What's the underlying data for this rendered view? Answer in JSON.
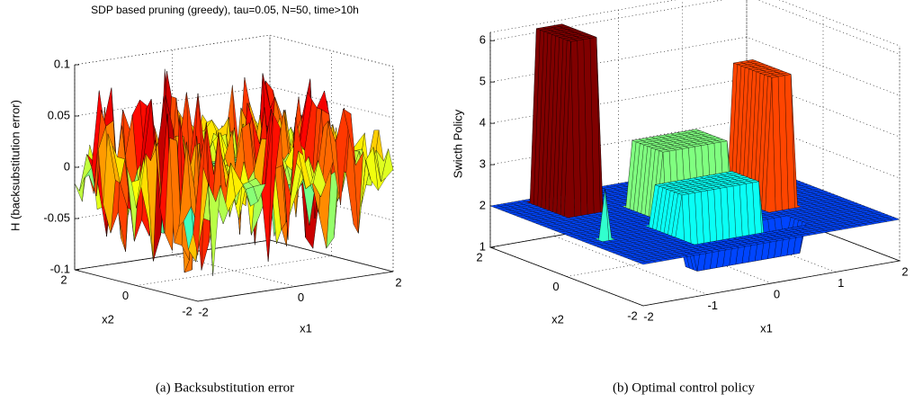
{
  "chart_data": [
    {
      "type": "surface",
      "title": "SDP based pruning (greedy), tau=0.05, N=50, time>10h",
      "zlabel": "H (backsubstitution error)",
      "xlabel": "x1",
      "ylabel": "x2",
      "xlim": [
        -2,
        2
      ],
      "ylim": [
        -2,
        2
      ],
      "zlim": [
        -0.1,
        0.1
      ],
      "xticks": [
        -2,
        0,
        2
      ],
      "yticks": [
        -2,
        0,
        2
      ],
      "zticks": [
        -0.1,
        -0.05,
        0,
        0.05,
        0.1
      ],
      "grid": true,
      "caption": "(a) Backsubstitution error"
    },
    {
      "type": "surface",
      "zlabel": "Swicth Policy",
      "xlabel": "x1",
      "ylabel": "x2",
      "xlim": [
        -2,
        2
      ],
      "ylim": [
        -2,
        2
      ],
      "zlim": [
        1,
        6.2
      ],
      "xticks": [
        -2,
        -1,
        0,
        1,
        2
      ],
      "yticks": [
        -2,
        0,
        2
      ],
      "zticks": [
        1,
        2,
        3,
        4,
        5,
        6
      ],
      "grid": true,
      "caption": "(b) Optimal control policy"
    }
  ]
}
